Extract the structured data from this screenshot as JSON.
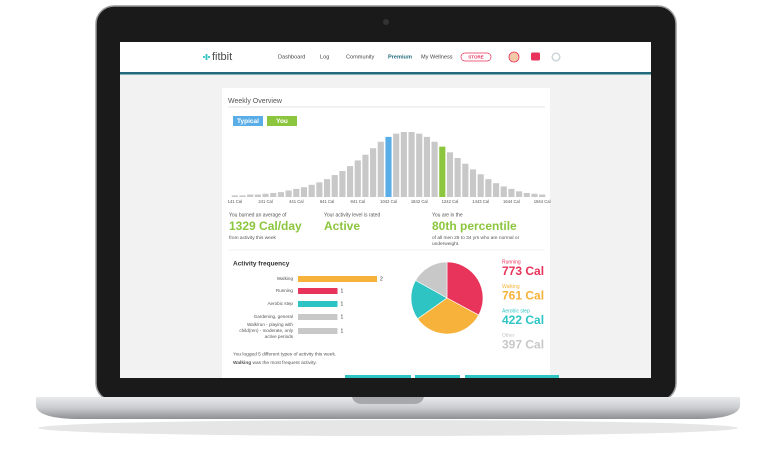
{
  "nav": {
    "logo": "fitbit",
    "links": [
      "Dashboard",
      "Log",
      "Community",
      "Premium",
      "My Wellness"
    ],
    "active": 3,
    "store": "STORE"
  },
  "panel_title": "Weekly Overview",
  "summary": [
    {
      "intro": "You burned an average of",
      "value": "1329 Cal/day",
      "note": "from activity this week"
    },
    {
      "intro": "Your activity level is rated",
      "value": "Active"
    },
    {
      "intro": "You are in the",
      "value": "80th percentile",
      "note": "of all men 25 to 34 yrs who are normal or underweight."
    }
  ],
  "footnote": {
    "text": "You logged 5 different types of activity this week.",
    "bold": "Walking",
    "rest": " was the most frequent activity."
  },
  "chart_data": [
    {
      "type": "histogram-bars",
      "categories": [
        "141 Cal",
        null,
        null,
        null,
        "241 Cal",
        null,
        null,
        null,
        "441 Cal",
        null,
        null,
        null,
        "641 Cal",
        null,
        null,
        null,
        "841 Cal",
        null,
        null,
        null,
        "1042 Cal",
        null,
        null,
        null,
        "1842 Cal",
        null,
        null,
        null,
        "1242 Cal",
        null,
        null,
        null,
        "1443 Cal",
        null,
        null,
        null,
        "1644 Cal",
        null,
        null,
        null,
        "1844 Cal"
      ],
      "values": [
        2,
        2,
        3,
        3,
        4,
        5,
        6,
        8,
        10,
        12,
        15,
        18,
        22,
        27,
        32,
        38,
        45,
        52,
        60,
        68,
        74,
        78,
        80,
        80,
        78,
        74,
        68,
        62,
        55,
        48,
        41,
        34,
        28,
        22,
        17,
        13,
        10,
        7,
        5,
        4,
        3
      ],
      "color": "#c8c8c8",
      "legend": [
        {
          "name": "Typical",
          "color": "#5aaee8",
          "bar": 20
        },
        {
          "name": "You",
          "color": "#8cc63f",
          "bar": 27
        }
      ]
    },
    {
      "type": "hbar",
      "title": "Activity frequency",
      "categories": [
        "Walking",
        "Running",
        "Aerobic step",
        "Gardening, general",
        "Walk/run - playing with child(ren) - moderate, only active periods"
      ],
      "values": [
        2,
        1,
        1,
        1,
        1
      ],
      "colors": [
        "#f7b23b",
        "#e8335a",
        "#2ec4c4",
        "#c8c8c8",
        "#c8c8c8"
      ]
    },
    {
      "type": "pie",
      "categories": [
        "Running",
        "Walking",
        "Aerobic step",
        "Other"
      ],
      "values": [
        773,
        761,
        422,
        397
      ],
      "value_labels": [
        "773 Cal",
        "761 Cal",
        "422 Cal",
        "397 Cal"
      ],
      "colors": [
        "#e8335a",
        "#f7b23b",
        "#2ec4c4",
        "#c8c8c8"
      ]
    }
  ]
}
